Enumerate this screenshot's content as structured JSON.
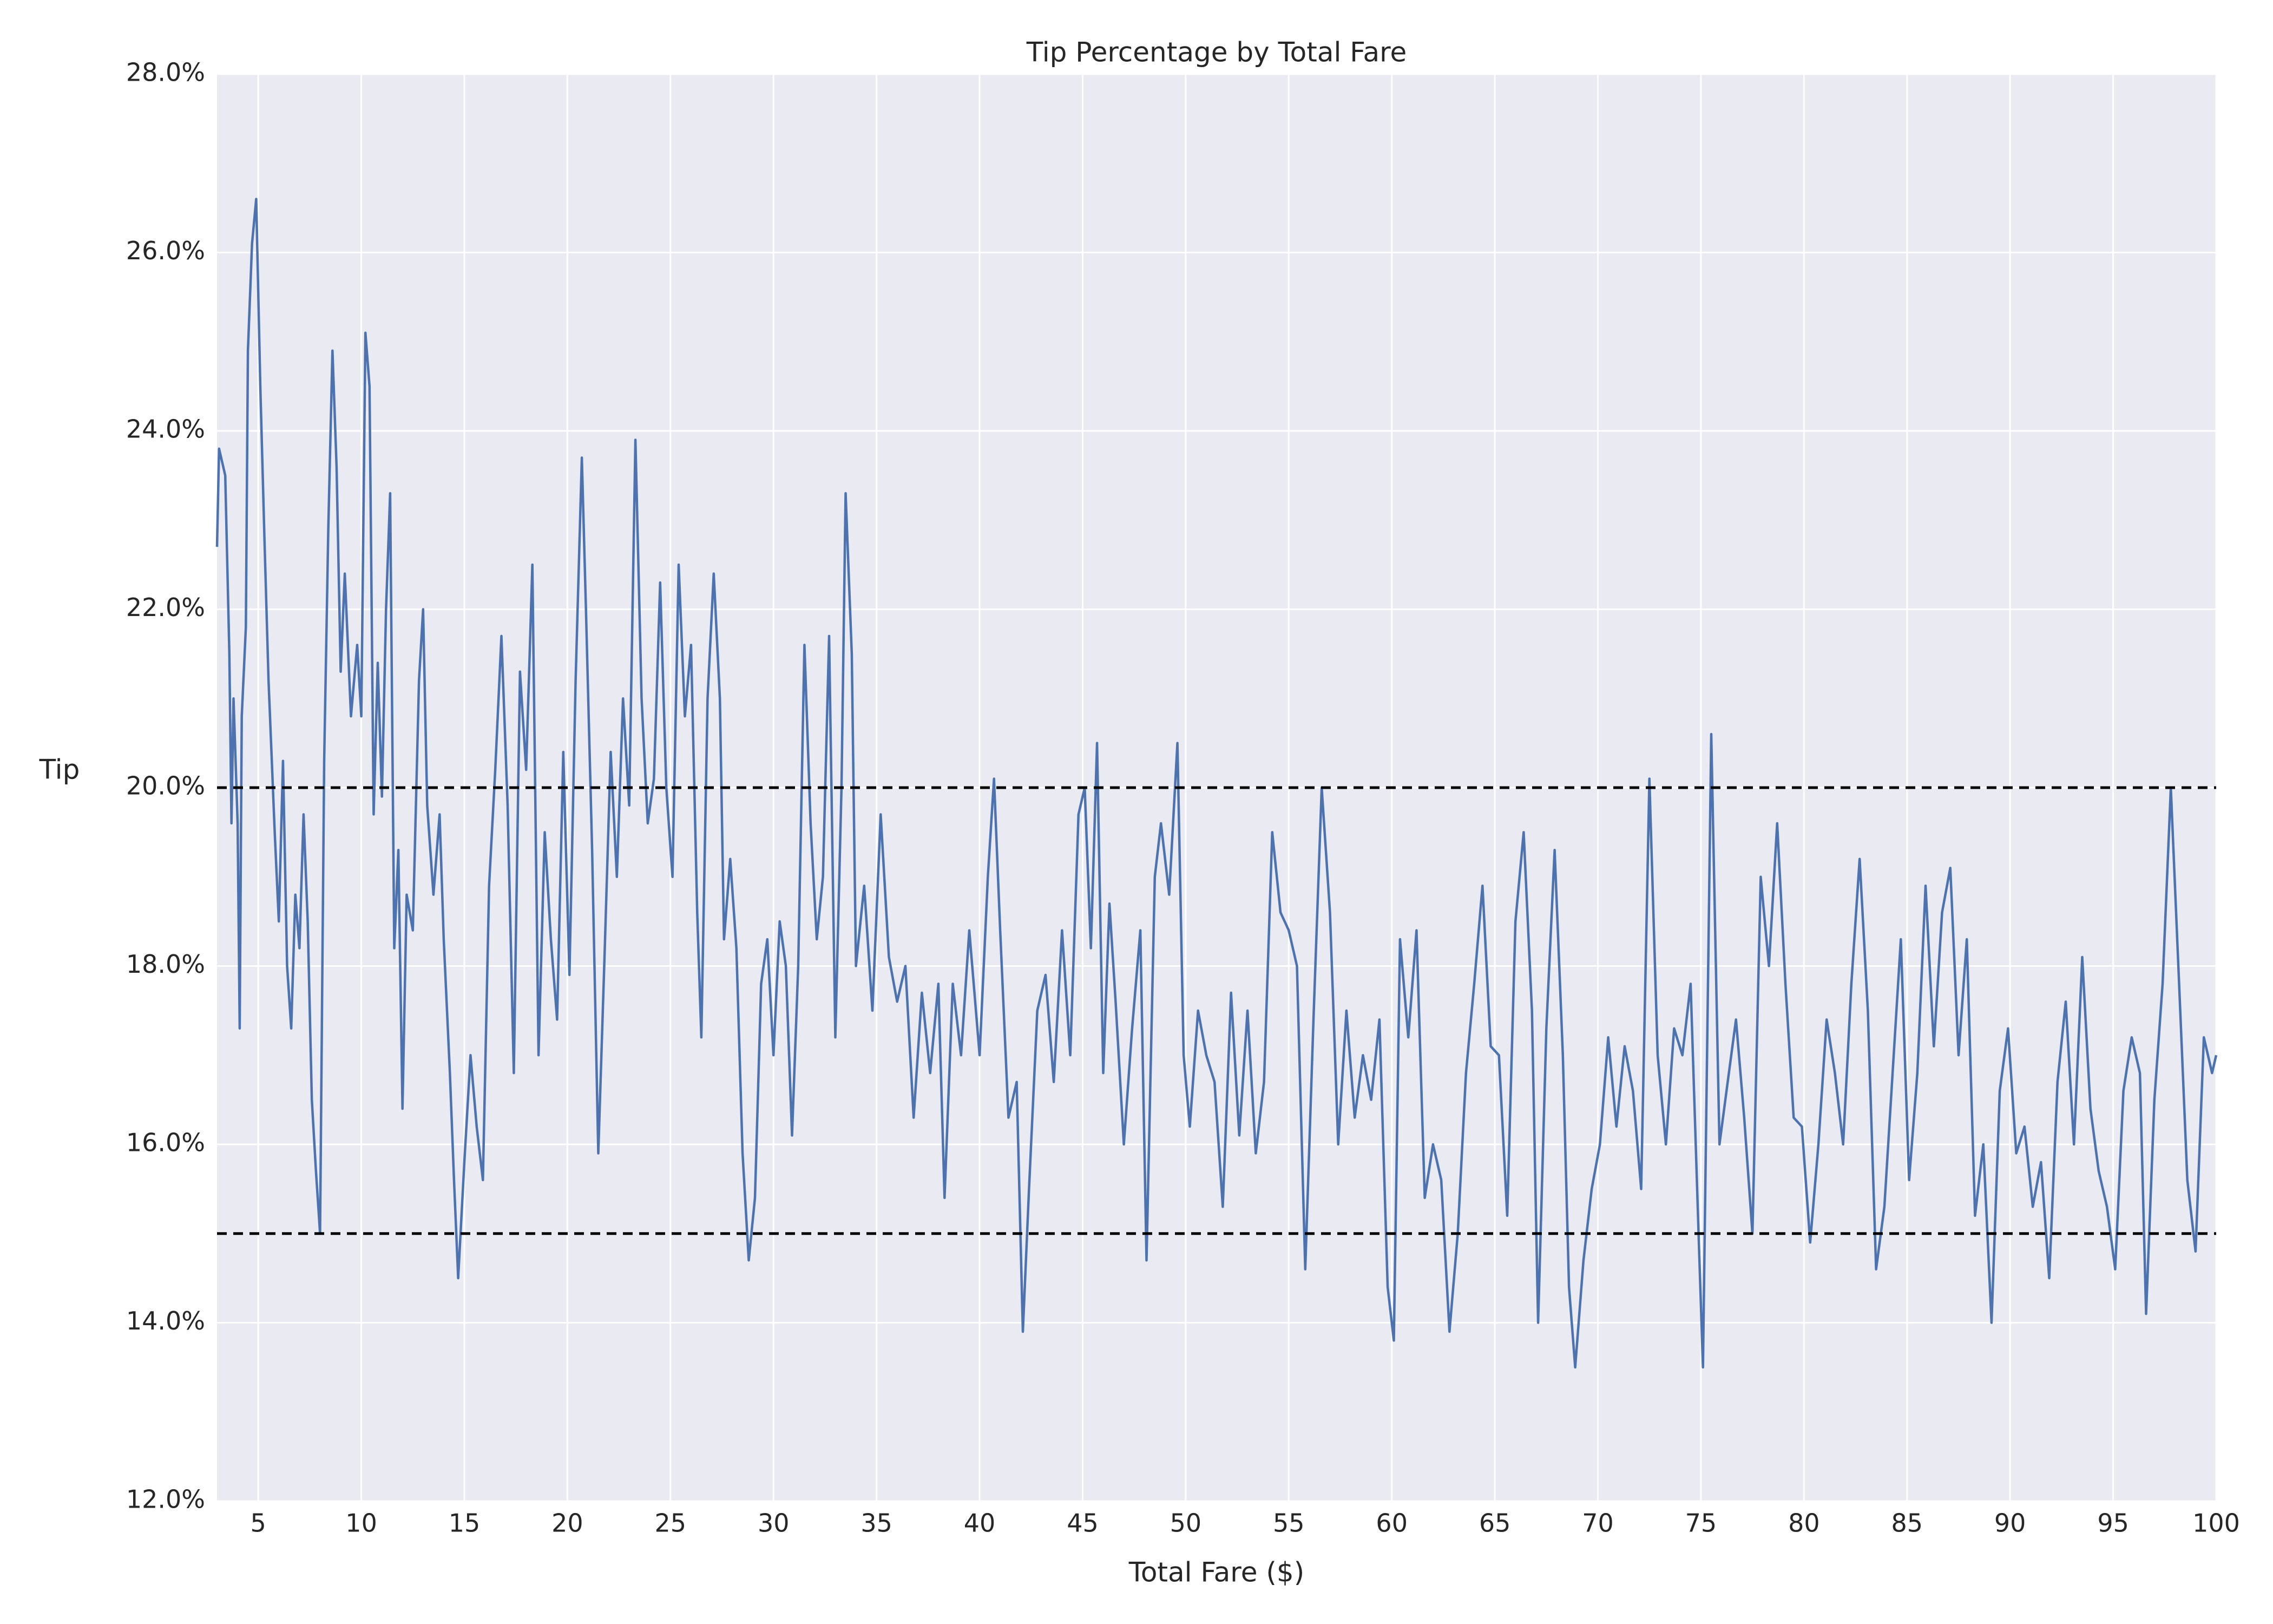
{
  "chart_data": {
    "type": "line",
    "title": "Tip Percentage by Total Fare",
    "xlabel": "Total Fare ($)",
    "ylabel": "Tip",
    "color": "#4c72b0",
    "grid": true,
    "hlines": [
      20,
      15
    ],
    "xlim": [
      3,
      100
    ],
    "ylim": [
      12,
      28
    ],
    "xticks": [
      5,
      10,
      15,
      20,
      25,
      30,
      35,
      40,
      45,
      50,
      55,
      60,
      65,
      70,
      75,
      80,
      85,
      90,
      95,
      100
    ],
    "yticks": [
      {
        "value": 12,
        "label": "12.0%"
      },
      {
        "value": 14,
        "label": "14.0%"
      },
      {
        "value": 16,
        "label": "16.0%"
      },
      {
        "value": 18,
        "label": "18.0%"
      },
      {
        "value": 20,
        "label": "20.0%"
      },
      {
        "value": 22,
        "label": "22.0%"
      },
      {
        "value": 24,
        "label": "24.0%"
      },
      {
        "value": 26,
        "label": "26.0%"
      },
      {
        "value": 28,
        "label": "28.0%"
      }
    ],
    "x": [
      3.0,
      3.1,
      3.4,
      3.6,
      3.7,
      3.8,
      4.0,
      4.1,
      4.2,
      4.4,
      4.5,
      4.7,
      4.9,
      5.1,
      5.3,
      5.5,
      5.8,
      6.0,
      6.2,
      6.4,
      6.6,
      6.8,
      7.0,
      7.2,
      7.4,
      7.6,
      7.8,
      8.0,
      8.2,
      8.4,
      8.6,
      8.8,
      9.0,
      9.2,
      9.5,
      9.8,
      10.0,
      10.2,
      10.4,
      10.6,
      10.8,
      11.0,
      11.2,
      11.4,
      11.6,
      11.8,
      12.0,
      12.2,
      12.5,
      12.8,
      13.0,
      13.2,
      13.5,
      13.8,
      14.0,
      14.3,
      14.5,
      14.7,
      15.0,
      15.3,
      15.6,
      15.9,
      16.2,
      16.5,
      16.8,
      17.1,
      17.4,
      17.7,
      18.0,
      18.3,
      18.6,
      18.9,
      19.2,
      19.5,
      19.8,
      20.1,
      20.4,
      20.7,
      20.9,
      21.2,
      21.5,
      21.8,
      22.1,
      22.4,
      22.7,
      23.0,
      23.3,
      23.6,
      23.9,
      24.2,
      24.5,
      24.8,
      25.1,
      25.4,
      25.7,
      26.0,
      26.3,
      26.5,
      26.8,
      27.1,
      27.4,
      27.6,
      27.9,
      28.2,
      28.5,
      28.8,
      29.1,
      29.4,
      29.7,
      30.0,
      30.3,
      30.6,
      30.9,
      31.2,
      31.5,
      31.8,
      32.1,
      32.4,
      32.7,
      33.0,
      33.3,
      33.5,
      33.8,
      34.0,
      34.4,
      34.8,
      35.2,
      35.6,
      36.0,
      36.4,
      36.8,
      37.2,
      37.6,
      38.0,
      38.3,
      38.7,
      39.1,
      39.5,
      40.0,
      40.4,
      40.7,
      41.0,
      41.4,
      41.8,
      42.1,
      42.4,
      42.8,
      43.2,
      43.6,
      44.0,
      44.4,
      44.8,
      45.1,
      45.4,
      45.7,
      46.0,
      46.3,
      46.6,
      47.0,
      47.4,
      47.8,
      48.1,
      48.5,
      48.8,
      49.2,
      49.6,
      49.9,
      50.2,
      50.6,
      51.0,
      51.4,
      51.8,
      52.2,
      52.6,
      53.0,
      53.4,
      53.8,
      54.2,
      54.6,
      55.0,
      55.4,
      55.8,
      56.2,
      56.6,
      57.0,
      57.4,
      57.8,
      58.2,
      58.6,
      59.0,
      59.4,
      59.8,
      60.1,
      60.4,
      60.8,
      61.2,
      61.6,
      62.0,
      62.4,
      62.8,
      63.2,
      63.6,
      64.0,
      64.4,
      64.8,
      65.2,
      65.6,
      66.0,
      66.4,
      66.8,
      67.1,
      67.5,
      67.9,
      68.3,
      68.6,
      68.9,
      69.3,
      69.7,
      70.1,
      70.5,
      70.9,
      71.3,
      71.7,
      72.1,
      72.5,
      72.9,
      73.3,
      73.7,
      74.1,
      74.5,
      74.9,
      75.1,
      75.5,
      75.9,
      76.3,
      76.7,
      77.1,
      77.5,
      77.9,
      78.3,
      78.7,
      79.1,
      79.5,
      79.9,
      80.3,
      80.7,
      81.1,
      81.5,
      81.9,
      82.3,
      82.7,
      83.1,
      83.5,
      83.9,
      84.3,
      84.7,
      85.1,
      85.5,
      85.9,
      86.3,
      86.7,
      87.1,
      87.5,
      87.9,
      88.3,
      88.7,
      89.1,
      89.5,
      89.9,
      90.3,
      90.7,
      91.1,
      91.5,
      91.9,
      92.3,
      92.7,
      93.1,
      93.5,
      93.9,
      94.3,
      94.7,
      95.1,
      95.5,
      95.9,
      96.3,
      96.6,
      97.0,
      97.4,
      97.8,
      98.2,
      98.6,
      99.0,
      99.4,
      99.8,
      100.0
    ],
    "values": [
      22.7,
      23.8,
      23.5,
      21.5,
      19.6,
      21.0,
      19.6,
      17.3,
      20.8,
      21.8,
      24.9,
      26.1,
      26.6,
      24.5,
      22.8,
      21.2,
      19.5,
      18.5,
      20.3,
      18.0,
      17.3,
      18.8,
      18.2,
      19.7,
      18.5,
      16.5,
      15.7,
      15.0,
      20.3,
      22.9,
      24.9,
      23.6,
      21.3,
      22.4,
      20.8,
      21.6,
      20.8,
      25.1,
      24.5,
      19.7,
      21.4,
      19.9,
      22.0,
      23.3,
      18.2,
      19.3,
      16.4,
      18.8,
      18.4,
      21.2,
      22.0,
      19.8,
      18.8,
      19.7,
      18.3,
      16.8,
      15.6,
      14.5,
      15.8,
      17.0,
      16.2,
      15.6,
      18.9,
      20.2,
      21.7,
      19.8,
      16.8,
      21.3,
      20.2,
      22.5,
      17.0,
      19.5,
      18.3,
      17.4,
      20.4,
      17.9,
      21.2,
      23.7,
      22.0,
      19.3,
      15.9,
      18.1,
      20.4,
      19.0,
      21.0,
      19.8,
      23.9,
      21.0,
      19.6,
      20.1,
      22.3,
      20.0,
      19.0,
      22.5,
      20.8,
      21.6,
      18.6,
      17.2,
      21.0,
      22.4,
      21.0,
      18.3,
      19.2,
      18.2,
      15.9,
      14.7,
      15.4,
      17.8,
      18.3,
      17.0,
      18.5,
      18.0,
      16.1,
      18.0,
      21.6,
      19.6,
      18.3,
      19.0,
      21.7,
      17.2,
      20.0,
      23.3,
      21.5,
      18.0,
      18.9,
      17.5,
      19.7,
      18.1,
      17.6,
      18.0,
      16.3,
      17.7,
      16.8,
      17.8,
      15.4,
      17.8,
      17.0,
      18.4,
      17.0,
      19.0,
      20.1,
      18.4,
      16.3,
      16.7,
      13.9,
      15.5,
      17.5,
      17.9,
      16.7,
      18.4,
      17.0,
      19.7,
      20.0,
      18.2,
      20.5,
      16.8,
      18.7,
      17.6,
      16.0,
      17.3,
      18.4,
      14.7,
      19.0,
      19.6,
      18.8,
      20.5,
      17.0,
      16.2,
      17.5,
      17.0,
      16.7,
      15.3,
      17.7,
      16.1,
      17.5,
      15.9,
      16.7,
      19.5,
      18.6,
      18.4,
      18.0,
      14.6,
      17.4,
      20.0,
      18.6,
      16.0,
      17.5,
      16.3,
      17.0,
      16.5,
      17.4,
      14.4,
      13.8,
      18.3,
      17.2,
      18.4,
      15.4,
      16.0,
      15.6,
      13.9,
      15.0,
      16.8,
      17.8,
      18.9,
      17.1,
      17.0,
      15.2,
      18.5,
      19.5,
      17.5,
      14.0,
      17.3,
      19.3,
      17.0,
      14.4,
      13.5,
      14.7,
      15.5,
      16.0,
      17.2,
      16.2,
      17.1,
      16.6,
      15.5,
      20.1,
      17.0,
      16.0,
      17.3,
      17.0,
      17.8,
      14.9,
      13.5,
      20.6,
      16.0,
      16.7,
      17.4,
      16.3,
      15.0,
      19.0,
      18.0,
      19.6,
      17.8,
      16.3,
      16.2,
      14.9,
      16.0,
      17.4,
      16.8,
      16.0,
      17.8,
      19.2,
      17.5,
      14.6,
      15.3,
      16.8,
      18.3,
      15.6,
      16.8,
      18.9,
      17.1,
      18.6,
      19.1,
      17.0,
      18.3,
      15.2,
      16.0,
      14.0,
      16.6,
      17.3,
      15.9,
      16.2,
      15.3,
      15.8,
      14.5,
      16.7,
      17.6,
      16.0,
      18.1,
      16.4,
      15.7,
      15.3,
      14.6,
      16.6,
      17.2,
      16.8,
      14.1,
      16.5,
      17.8,
      20.0,
      17.8,
      15.6,
      14.8,
      17.2,
      16.8,
      17.0
    ]
  }
}
